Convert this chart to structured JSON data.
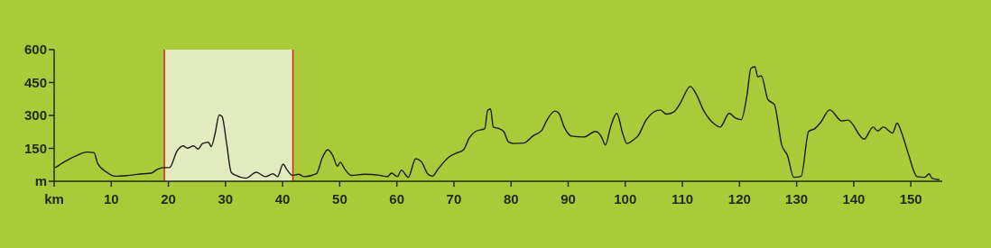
{
  "chart_data": {
    "type": "line",
    "x": [
      0.2,
      1.8,
      3.9,
      5.7,
      7.0,
      7.6,
      9.2,
      10.7,
      12.8,
      15.5,
      17.0,
      18.1,
      19.1,
      20.2,
      21.5,
      22.6,
      23.3,
      24.4,
      25.2,
      26.0,
      27.0,
      27.5,
      28.2,
      28.9,
      29.4,
      30.2,
      31.0,
      31.8,
      33.6,
      35.4,
      37.0,
      38.3,
      39.1,
      40.1,
      40.7,
      41.7,
      42.8,
      43.8,
      45.9,
      47.0,
      47.9,
      48.8,
      49.6,
      50.1,
      50.9,
      52.0,
      54.3,
      57.0,
      58.3,
      59.1,
      60.1,
      60.8,
      62.0,
      63.3,
      64.3,
      65.4,
      66.2,
      67.2,
      69.1,
      70.4,
      71.7,
      72.7,
      73.8,
      75.4,
      75.9,
      76.4,
      76.9,
      77.9,
      78.7,
      79.6,
      80.6,
      82.2,
      83.8,
      85.4,
      86.2,
      87.7,
      88.4,
      89.3,
      90.6,
      92.7,
      94.8,
      95.9,
      96.5,
      97.5,
      98.5,
      99.6,
      100.3,
      101.6,
      102.2,
      103.7,
      106.1,
      107.2,
      108.5,
      109.5,
      111.4,
      112.4,
      113.7,
      115.6,
      116.6,
      118.2,
      119.3,
      120.3,
      121.3,
      122.0,
      122.7,
      123.2,
      123.8,
      125.0,
      126.1,
      127.4,
      128.4,
      129.5,
      130.8,
      132.1,
      133.2,
      134.2,
      135.8,
      137.9,
      139.0,
      141.8,
      143.4,
      144.2,
      145.2,
      146.8,
      147.6,
      148.4,
      149.5,
      151.1,
      152.4,
      153.2,
      153.7,
      155.0
    ],
    "series": [
      {
        "color": "#1a1a1a",
        "values": [
          62,
          89,
          117,
          133,
          130,
          82,
          41,
          23,
          26,
          34,
          37,
          55,
          62,
          62,
          137,
          161,
          151,
          161,
          147,
          172,
          178,
          158,
          220,
          302,
          295,
          172,
          41,
          27,
          14,
          41,
          21,
          34,
          21,
          78,
          55,
          27,
          32,
          21,
          34,
          110,
          144,
          117,
          69,
          87,
          55,
          27,
          32,
          27,
          21,
          37,
          21,
          51,
          18,
          103,
          89,
          34,
          23,
          55,
          110,
          128,
          144,
          199,
          227,
          240,
          323,
          330,
          247,
          240,
          227,
          178,
          172,
          174,
          206,
          233,
          275,
          320,
          309,
          247,
          206,
          202,
          227,
          199,
          165,
          254,
          309,
          213,
          172,
          192,
          206,
          281,
          325,
          306,
          316,
          350,
          432,
          398,
          323,
          261,
          247,
          309,
          288,
          281,
          391,
          515,
          522,
          476,
          481,
          371,
          350,
          165,
          117,
          18,
          23,
          227,
          240,
          268,
          325,
          275,
          279,
          192,
          247,
          229,
          247,
          220,
          265,
          220,
          130,
          21,
          18,
          34,
          14,
          7
        ]
      }
    ],
    "xlim": [
      0,
      155.5
    ],
    "xticks": [
      {
        "value": 0,
        "label": "km"
      },
      10,
      20,
      30,
      40,
      50,
      60,
      70,
      80,
      90,
      100,
      110,
      120,
      130,
      140,
      150
    ],
    "ylim": [
      0,
      600
    ],
    "yticks": [
      {
        "value": 0,
        "label": "m"
      },
      150,
      300,
      450,
      600
    ],
    "bands": [
      {
        "axis": "x",
        "from": 19.3,
        "to": 41.8,
        "color": "#e2ebc0"
      }
    ],
    "ref_lines": [
      {
        "axis": "x",
        "value": 19.3,
        "color": "#d9261c"
      },
      {
        "axis": "x",
        "value": 41.8,
        "color": "#d9261c"
      }
    ],
    "grid": false,
    "legend": false,
    "marker": "none",
    "line_style": "solid"
  }
}
